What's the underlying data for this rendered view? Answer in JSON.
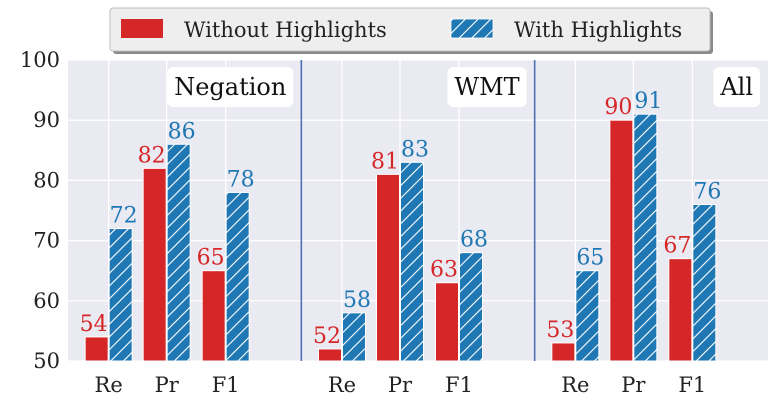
{
  "chart_data": {
    "type": "bar",
    "ylim": [
      50,
      100
    ],
    "yticks": [
      50,
      60,
      70,
      80,
      90,
      100
    ],
    "categories": [
      "Re",
      "Pr",
      "F1"
    ],
    "panels": [
      {
        "title": "Negation",
        "series": [
          {
            "name": "Without Highlights",
            "values": [
              54,
              82,
              65
            ]
          },
          {
            "name": "With Highlights",
            "values": [
              72,
              86,
              78
            ]
          }
        ]
      },
      {
        "title": "WMT",
        "series": [
          {
            "name": "Without Highlights",
            "values": [
              52,
              81,
              63
            ]
          },
          {
            "name": "With Highlights",
            "values": [
              58,
              83,
              68
            ]
          }
        ]
      },
      {
        "title": "All",
        "series": [
          {
            "name": "Without Highlights",
            "values": [
              53,
              90,
              67
            ]
          },
          {
            "name": "With Highlights",
            "values": [
              65,
              91,
              76
            ]
          }
        ]
      }
    ],
    "legend": {
      "placement": "top-center",
      "entries": [
        "Without Highlights",
        "With Highlights"
      ]
    },
    "colors": {
      "without": "#d62728",
      "with": "#1f77b4",
      "background": "#eaeaf2",
      "divider": "#4c72b0"
    },
    "grid": true
  }
}
